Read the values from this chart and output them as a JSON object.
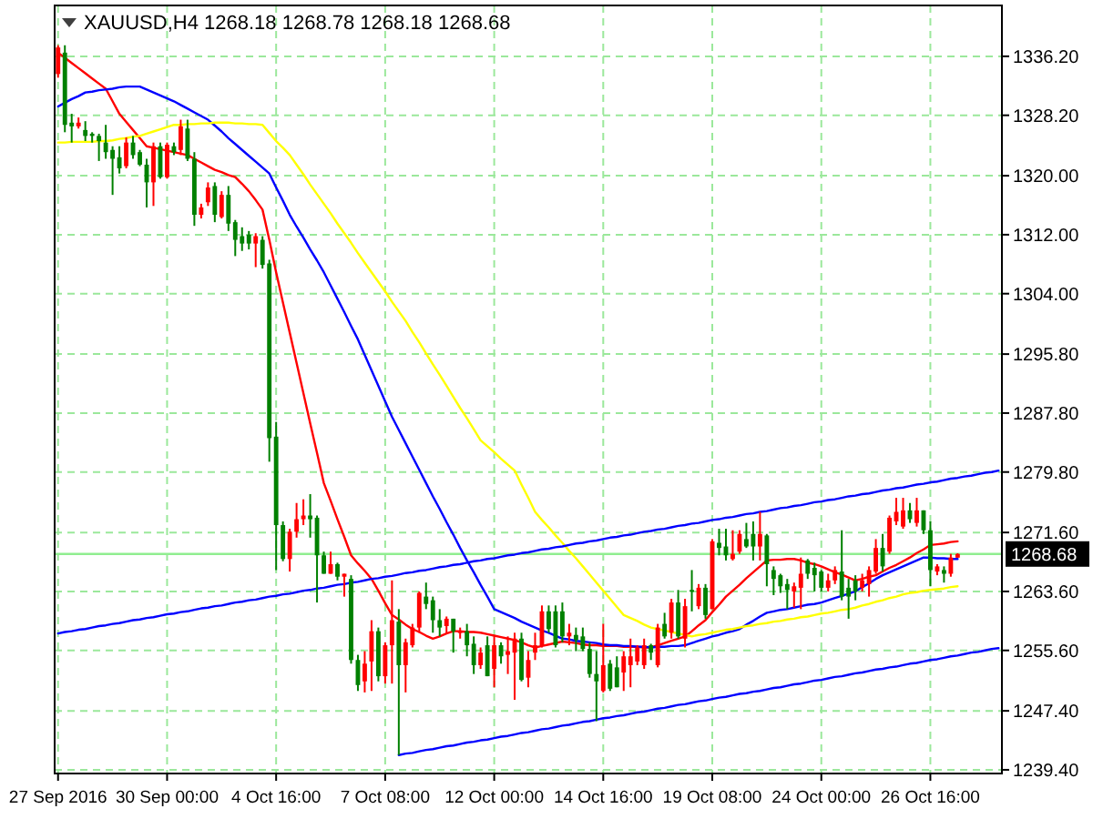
{
  "chart_data": {
    "type": "candlestick",
    "title": "XAUUSD,H4  1268.18 1268.78 1268.18 1268.68",
    "ylim": [
      1238.9,
      1343.1
    ],
    "yticks": [
      {
        "value": 1336.2,
        "label": "1336.20"
      },
      {
        "value": 1328.2,
        "label": "1328.20"
      },
      {
        "value": 1320,
        "label": "1320.00"
      },
      {
        "value": 1312,
        "label": "1312.00"
      },
      {
        "value": 1304,
        "label": "1304.00"
      },
      {
        "value": 1295.8,
        "label": "1295.80"
      },
      {
        "value": 1287.8,
        "label": "1287.80"
      },
      {
        "value": 1279.8,
        "label": "1279.80"
      },
      {
        "value": 1271.6,
        "label": "1271.60"
      },
      {
        "value": 1263.6,
        "label": "1263.60"
      },
      {
        "value": 1255.6,
        "label": "1255.60"
      },
      {
        "value": 1247.4,
        "label": "1247.40"
      },
      {
        "value": 1239.4,
        "label": "1239.40"
      }
    ],
    "grid": true,
    "ref_lines": [
      {
        "axis": "y",
        "value": 1268.68,
        "label": "1268.68",
        "color": "#90ee90"
      }
    ],
    "categories": [
      "27 Sep 2016",
      null,
      null,
      null,
      null,
      null,
      null,
      null,
      null,
      null,
      null,
      null,
      null,
      null,
      null,
      null,
      "30 Sep 00:00",
      null,
      null,
      null,
      null,
      null,
      null,
      null,
      null,
      null,
      null,
      null,
      null,
      null,
      null,
      null,
      "4 Oct 16:00",
      null,
      null,
      null,
      null,
      null,
      null,
      null,
      null,
      null,
      null,
      null,
      null,
      null,
      null,
      null,
      "7 Oct 08:00",
      null,
      null,
      null,
      null,
      null,
      null,
      null,
      null,
      null,
      null,
      null,
      null,
      null,
      null,
      null,
      "12 Oct 00:00",
      null,
      null,
      null,
      null,
      null,
      null,
      null,
      null,
      null,
      null,
      null,
      null,
      null,
      null,
      null,
      "14 Oct 16:00",
      null,
      null,
      null,
      null,
      null,
      null,
      null,
      null,
      null,
      null,
      null,
      null,
      null,
      null,
      null,
      "19 Oct 08:00",
      null,
      null,
      null,
      null,
      null,
      null,
      null,
      null,
      null,
      null,
      null,
      null,
      null,
      null,
      null,
      "24 Oct 00:00",
      null,
      null,
      null,
      null,
      null,
      null,
      null,
      null,
      null,
      null,
      null,
      null,
      null,
      null,
      null,
      "26 Oct 16:00",
      null,
      null,
      null,
      null,
      null,
      null,
      null,
      null,
      null,
      null
    ],
    "ohlc": [
      [
        1333.8,
        1337.7,
        1333.3,
        1337.4
      ],
      [
        1336.7,
        1337.7,
        1325.9,
        1326.9
      ],
      [
        1327.2,
        1328.4,
        1324.5,
        1326.7
      ],
      [
        1326.7,
        1327.9,
        1326.4,
        1327.2
      ],
      [
        1326.2,
        1327.4,
        1324.7,
        1325.4
      ],
      [
        1325.7,
        1325.9,
        1324.5,
        1325.4
      ],
      [
        1325.4,
        1325.7,
        1322.0,
        1324.7
      ],
      [
        1324.5,
        1326.9,
        1322.3,
        1323.2
      ],
      [
        1323.5,
        1324.0,
        1317.4,
        1322.3
      ],
      [
        1322.5,
        1324.0,
        1320.3,
        1321.0
      ],
      [
        1321.3,
        1325.2,
        1321.0,
        1324.5
      ],
      [
        1324.5,
        1325.4,
        1322.3,
        1322.8
      ],
      [
        1323.2,
        1323.5,
        1321.3,
        1321.5
      ],
      [
        1321.5,
        1322.3,
        1315.7,
        1319.1
      ],
      [
        1319.1,
        1324.5,
        1315.9,
        1324.0
      ],
      [
        1324.0,
        1324.5,
        1319.6,
        1319.8
      ],
      [
        1319.8,
        1324.5,
        1319.6,
        1324.2
      ],
      [
        1324.0,
        1324.5,
        1322.8,
        1323.2
      ],
      [
        1323.5,
        1327.6,
        1322.8,
        1326.7
      ],
      [
        1326.4,
        1327.6,
        1322.0,
        1322.3
      ],
      [
        1322.3,
        1323.2,
        1313.2,
        1314.7
      ],
      [
        1314.7,
        1316.2,
        1314.2,
        1315.7
      ],
      [
        1316.4,
        1319.1,
        1315.9,
        1318.4
      ],
      [
        1318.6,
        1319.1,
        1313.7,
        1314.7
      ],
      [
        1314.4,
        1317.9,
        1314.2,
        1317.4
      ],
      [
        1317.4,
        1318.6,
        1312.5,
        1313.5
      ],
      [
        1313.7,
        1314.0,
        1309.1,
        1311.3
      ],
      [
        1311.8,
        1313.0,
        1309.8,
        1310.8
      ],
      [
        1312.0,
        1312.5,
        1310.0,
        1310.8
      ],
      [
        1310.8,
        1312.2,
        1307.6,
        1311.8
      ],
      [
        1311.3,
        1311.8,
        1307.4,
        1307.9
      ],
      [
        1308.1,
        1308.6,
        1281.2,
        1284.4
      ],
      [
        1284.6,
        1286.6,
        1266.5,
        1272.6
      ],
      [
        1272.6,
        1273.1,
        1267.7,
        1268.0
      ],
      [
        1268.0,
        1272.1,
        1266.3,
        1271.7
      ],
      [
        1271.7,
        1275.6,
        1270.9,
        1273.4
      ],
      [
        1273.4,
        1276.1,
        1272.6,
        1273.9
      ],
      [
        1273.9,
        1276.8,
        1270.9,
        1273.4
      ],
      [
        1273.6,
        1273.9,
        1262.1,
        1268.5
      ],
      [
        1268.5,
        1269.0,
        1266.0,
        1266.0
      ],
      [
        1266.0,
        1269.0,
        1266.0,
        1267.3
      ],
      [
        1267.3,
        1267.5,
        1265.1,
        1265.6
      ],
      [
        1265.6,
        1266.0,
        1262.9,
        1266.0
      ],
      [
        1265.3,
        1265.8,
        1253.8,
        1254.3
      ],
      [
        1254.3,
        1255.0,
        1250.1,
        1250.9
      ],
      [
        1251.4,
        1255.5,
        1249.9,
        1253.8
      ],
      [
        1254.1,
        1259.7,
        1250.1,
        1258.2
      ],
      [
        1258.2,
        1258.7,
        1251.4,
        1252.1
      ],
      [
        1252.1,
        1256.7,
        1251.1,
        1256.3
      ],
      [
        1256.3,
        1265.1,
        1251.1,
        1259.7
      ],
      [
        1259.5,
        1261.2,
        1241.4,
        1253.6
      ],
      [
        1253.6,
        1257.2,
        1249.9,
        1256.7
      ],
      [
        1256.3,
        1259.2,
        1256.0,
        1258.7
      ],
      [
        1258.7,
        1263.6,
        1258.0,
        1263.4
      ],
      [
        1262.9,
        1264.8,
        1261.2,
        1261.9
      ],
      [
        1262.4,
        1262.9,
        1258.0,
        1259.7
      ],
      [
        1259.7,
        1261.2,
        1257.5,
        1258.7
      ],
      [
        1258.9,
        1260.2,
        1258.0,
        1259.9
      ],
      [
        1259.9,
        1259.9,
        1255.3,
        1258.2
      ],
      [
        1258.0,
        1258.7,
        1257.2,
        1258.2
      ],
      [
        1258.2,
        1259.2,
        1254.8,
        1256.3
      ],
      [
        1256.5,
        1257.5,
        1252.4,
        1253.6
      ],
      [
        1253.6,
        1256.0,
        1253.1,
        1255.3
      ],
      [
        1256.3,
        1257.5,
        1252.1,
        1252.1
      ],
      [
        1253.1,
        1257.5,
        1250.6,
        1256.3
      ],
      [
        1256.3,
        1256.7,
        1253.8,
        1254.8
      ],
      [
        1255.0,
        1257.5,
        1252.4,
        1255.5
      ],
      [
        1255.3,
        1258.0,
        1248.9,
        1257.2
      ],
      [
        1257.2,
        1258.0,
        1251.4,
        1251.6
      ],
      [
        1251.9,
        1255.5,
        1250.6,
        1254.3
      ],
      [
        1255.3,
        1258.0,
        1254.3,
        1256.3
      ],
      [
        1256.3,
        1261.7,
        1256.0,
        1260.9
      ],
      [
        1260.9,
        1261.7,
        1258.0,
        1258.5
      ],
      [
        1260.9,
        1261.7,
        1256.0,
        1256.3
      ],
      [
        1260.9,
        1262.1,
        1256.7,
        1257.5
      ],
      [
        1257.5,
        1259.2,
        1256.3,
        1258.0
      ],
      [
        1257.7,
        1258.7,
        1255.5,
        1257.0
      ],
      [
        1257.5,
        1258.7,
        1255.5,
        1255.8
      ],
      [
        1255.8,
        1256.7,
        1251.9,
        1252.4
      ],
      [
        1252.4,
        1255.5,
        1246.0,
        1251.4
      ],
      [
        1250.1,
        1259.2,
        1249.9,
        1253.6
      ],
      [
        1253.8,
        1254.3,
        1250.1,
        1250.4
      ],
      [
        1253.3,
        1254.8,
        1250.6,
        1250.6
      ],
      [
        1252.6,
        1255.5,
        1250.1,
        1254.8
      ],
      [
        1253.6,
        1257.2,
        1250.6,
        1254.8
      ],
      [
        1254.1,
        1256.3,
        1253.6,
        1256.0
      ],
      [
        1253.6,
        1257.2,
        1253.1,
        1256.3
      ],
      [
        1256.3,
        1256.5,
        1254.3,
        1255.3
      ],
      [
        1253.6,
        1259.2,
        1253.3,
        1258.7
      ],
      [
        1259.2,
        1260.7,
        1257.2,
        1257.5
      ],
      [
        1258.0,
        1262.6,
        1257.2,
        1262.1
      ],
      [
        1262.1,
        1263.8,
        1257.2,
        1257.5
      ],
      [
        1257.2,
        1262.6,
        1256.0,
        1261.6
      ],
      [
        1263.8,
        1266.5,
        1260.9,
        1263.6
      ],
      [
        1261.6,
        1264.6,
        1261.2,
        1264.1
      ],
      [
        1264.1,
        1264.6,
        1259.9,
        1260.4
      ],
      [
        1261.2,
        1270.7,
        1261.2,
        1270.4
      ],
      [
        1270.2,
        1272.1,
        1268.5,
        1269.5
      ],
      [
        1269.7,
        1272.1,
        1267.8,
        1268.5
      ],
      [
        1268.0,
        1271.9,
        1267.8,
        1268.7
      ],
      [
        1269.0,
        1271.9,
        1268.7,
        1271.4
      ],
      [
        1270.7,
        1272.9,
        1269.5,
        1269.7
      ],
      [
        1271.4,
        1273.1,
        1267.8,
        1269.7
      ],
      [
        1269.7,
        1274.4,
        1267.8,
        1271.4
      ],
      [
        1271.2,
        1271.4,
        1264.3,
        1267.3
      ],
      [
        1266.5,
        1267.0,
        1263.1,
        1265.3
      ],
      [
        1265.8,
        1266.0,
        1263.4,
        1264.3
      ],
      [
        1264.6,
        1265.3,
        1261.2,
        1263.8
      ],
      [
        1263.6,
        1264.8,
        1261.4,
        1264.3
      ],
      [
        1264.1,
        1268.2,
        1261.2,
        1266.0
      ],
      [
        1267.8,
        1268.0,
        1265.3,
        1266.0
      ],
      [
        1266.8,
        1267.5,
        1263.6,
        1265.8
      ],
      [
        1266.3,
        1266.5,
        1263.6,
        1264.1
      ],
      [
        1264.1,
        1266.0,
        1263.6,
        1265.1
      ],
      [
        1265.1,
        1267.0,
        1264.6,
        1266.5
      ],
      [
        1266.3,
        1271.9,
        1262.4,
        1262.9
      ],
      [
        1264.1,
        1265.3,
        1259.9,
        1262.9
      ],
      [
        1265.1,
        1265.8,
        1262.4,
        1263.6
      ],
      [
        1264.1,
        1266.0,
        1263.6,
        1265.1
      ],
      [
        1264.6,
        1267.0,
        1262.9,
        1266.5
      ],
      [
        1266.3,
        1270.7,
        1266.0,
        1269.5
      ],
      [
        1269.5,
        1271.4,
        1266.3,
        1267.0
      ],
      [
        1269.0,
        1273.9,
        1268.7,
        1273.6
      ],
      [
        1273.1,
        1276.3,
        1272.6,
        1274.4
      ],
      [
        1272.4,
        1276.3,
        1272.1,
        1274.6
      ],
      [
        1274.6,
        1275.6,
        1272.9,
        1273.4
      ],
      [
        1272.9,
        1276.3,
        1272.4,
        1274.6
      ],
      [
        1274.6,
        1274.6,
        1271.4,
        1271.9
      ],
      [
        1271.9,
        1273.1,
        1264.3,
        1266.5
      ],
      [
        1266.3,
        1267.3,
        1265.8,
        1267.0
      ],
      [
        1266.5,
        1267.0,
        1264.8,
        1266.0
      ],
      [
        1266.0,
        1268.7,
        1265.6,
        1268.2
      ],
      [
        1268.18,
        1268.78,
        1268.18,
        1268.68
      ],
      null,
      null,
      null,
      null,
      null,
      null
    ],
    "colors": [
      "#ff0000",
      "#008000",
      "#008000",
      "#ff0000",
      "#008000",
      "#008000",
      "#008000",
      "#008000",
      "#008000",
      "#008000",
      "#ff0000",
      "#008000",
      "#008000",
      "#008000",
      "#ff0000",
      "#008000",
      "#ff0000",
      "#008000",
      "#ff0000",
      "#008000",
      "#008000",
      "#ff0000",
      "#ff0000",
      "#008000",
      "#ff0000",
      "#008000",
      "#008000",
      "#008000",
      "#008000",
      "#ff0000",
      "#008000",
      "#008000",
      "#008000",
      "#008000",
      "#ff0000",
      "#ff0000",
      "#ff0000",
      "#008000",
      "#008000",
      "#008000",
      "#ff0000",
      "#008000",
      "#ff0000",
      "#008000",
      "#008000",
      "#ff0000",
      "#ff0000",
      "#008000",
      "#ff0000",
      "#ff0000",
      "#008000",
      "#ff0000",
      "#ff0000",
      "#ff0000",
      "#008000",
      "#008000",
      "#008000",
      "#ff0000",
      "#008000",
      "#ff0000",
      "#008000",
      "#008000",
      "#ff0000",
      "#008000",
      "#ff0000",
      "#008000",
      "#ff0000",
      "#ff0000",
      "#008000",
      "#ff0000",
      "#ff0000",
      "#ff0000",
      "#008000",
      "#008000",
      "#008000",
      "#ff0000",
      "#008000",
      "#008000",
      "#008000",
      "#008000",
      "#ff0000",
      "#008000",
      "#008000",
      "#ff0000",
      "#ff0000",
      "#ff0000",
      "#ff0000",
      "#008000",
      "#ff0000",
      "#008000",
      "#ff0000",
      "#008000",
      "#ff0000",
      "#008000",
      "#ff0000",
      "#008000",
      "#ff0000",
      "#008000",
      "#008000",
      "#ff0000",
      "#ff0000",
      "#008000",
      "#008000",
      "#ff0000",
      "#008000",
      "#008000",
      "#008000",
      "#008000",
      "#ff0000",
      "#ff0000",
      "#008000",
      "#008000",
      "#008000",
      "#ff0000",
      "#ff0000",
      "#008000",
      "#008000",
      "#008000",
      "#ff0000",
      "#ff0000",
      "#ff0000",
      "#008000",
      "#ff0000",
      "#ff0000",
      "#ff0000",
      "#008000",
      "#ff0000",
      "#008000",
      "#008000",
      "#ff0000",
      "#008000",
      "#ff0000",
      "#ff0000",
      null,
      null,
      null,
      null,
      null,
      null
    ],
    "series": [
      {
        "type": "line",
        "color": "#ff0000",
        "values": [
          1336.7,
          1336.0,
          1335.3,
          1334.6,
          1333.9,
          1333.2,
          1332.5,
          1331.8,
          1330.1,
          1328.4,
          1327.3,
          1326.2,
          1325.1,
          1324.0,
          1323.8,
          1323.6,
          1323.4,
          1323.2,
          1323.0,
          1322.8,
          1322.3,
          1321.8,
          1321.3,
          1320.8,
          1320.5,
          1320.1,
          1319.8,
          1318.9,
          1317.9,
          1316.7,
          1315.4,
          1311.3,
          1306.9,
          1302.8,
          1298.7,
          1294.6,
          1290.5,
          1286.4,
          1282.4,
          1278.3,
          1275.9,
          1273.4,
          1271.0,
          1268.5,
          1267.4,
          1266.4,
          1265.3,
          1263.7,
          1262.0,
          1260.4,
          1259.8,
          1259.1,
          1258.5,
          1258.1,
          1257.6,
          1257.2,
          1257.5,
          1257.9,
          1258.2,
          1258.2,
          1258.1,
          1258.1,
          1258.0,
          1257.8,
          1257.6,
          1257.4,
          1257.2,
          1257.0,
          1256.7,
          1256.3,
          1256.0,
          1256.2,
          1256.4,
          1256.6,
          1256.8,
          1256.7,
          1256.6,
          1256.4,
          1256.3,
          1256.3,
          1256.2,
          1256.2,
          1256.2,
          1256.1,
          1256.1,
          1256.1,
          1256.0,
          1256.0,
          1256.3,
          1256.6,
          1256.9,
          1257.2,
          1257.5,
          1258.2,
          1259.0,
          1259.7,
          1260.8,
          1261.8,
          1262.9,
          1263.7,
          1264.5,
          1265.4,
          1266.2,
          1267.0,
          1267.8,
          1267.9,
          1267.9,
          1268.0,
          1268.0,
          1267.8,
          1267.5,
          1267.3,
          1267.0,
          1266.6,
          1266.2,
          1265.9,
          1265.5,
          1265.1,
          1265.3,
          1265.6,
          1265.8,
          1266.3,
          1266.8,
          1267.2,
          1267.7,
          1268.2,
          1268.8,
          1269.3,
          1269.9,
          1270.0,
          1270.1,
          1270.3,
          1270.4,
          null,
          null,
          null,
          null,
          null,
          null
        ]
      },
      {
        "type": "line",
        "color": "#0000ff",
        "values": [
          1329.4,
          1329.9,
          1330.4,
          1330.8,
          1331.3,
          1331.4,
          1331.6,
          1331.7,
          1331.8,
          1332.0,
          1332.1,
          1332.1,
          1332.1,
          1331.7,
          1331.3,
          1330.9,
          1330.5,
          1330.1,
          1329.6,
          1329.1,
          1328.6,
          1328.1,
          1327.6,
          1326.8,
          1326.0,
          1325.1,
          1324.3,
          1323.5,
          1322.7,
          1321.9,
          1321.1,
          1320.3,
          1318.4,
          1316.6,
          1314.7,
          1313.1,
          1311.6,
          1310.0,
          1308.5,
          1306.9,
          1305.1,
          1303.3,
          1301.5,
          1299.6,
          1297.8,
          1295.7,
          1293.6,
          1291.5,
          1289.4,
          1287.3,
          1285.5,
          1283.7,
          1281.9,
          1280.1,
          1278.3,
          1276.5,
          1274.8,
          1273.0,
          1271.3,
          1269.5,
          1267.8,
          1266.2,
          1264.5,
          1262.9,
          1261.2,
          1260.8,
          1260.4,
          1260.0,
          1259.5,
          1259.1,
          1258.7,
          1258.3,
          1258.0,
          1257.6,
          1257.2,
          1257.1,
          1256.9,
          1256.8,
          1256.7,
          1256.6,
          1256.4,
          1256.3,
          1256.3,
          1256.2,
          1256.2,
          1256.1,
          1256.1,
          1256.0,
          1256.1,
          1256.1,
          1256.2,
          1256.2,
          1256.3,
          1256.6,
          1256.9,
          1257.2,
          1257.5,
          1257.7,
          1258.0,
          1258.2,
          1258.5,
          1259.1,
          1259.6,
          1260.2,
          1260.7,
          1260.9,
          1261.1,
          1261.2,
          1261.4,
          1261.6,
          1261.8,
          1261.9,
          1262.1,
          1262.4,
          1262.7,
          1263.0,
          1263.3,
          1263.6,
          1264.2,
          1264.7,
          1265.3,
          1265.8,
          1266.2,
          1266.6,
          1267.0,
          1267.4,
          1267.8,
          1268.2,
          1268.2,
          1268.1,
          1268.1,
          1268.0,
          1268.0,
          null,
          null,
          null,
          null,
          null,
          null
        ]
      },
      {
        "type": "line",
        "color": "#ffff00",
        "values": [
          1324.5,
          1324.5,
          1324.6,
          1324.6,
          1324.6,
          1324.6,
          1324.7,
          1324.7,
          1324.8,
          1325.0,
          1325.1,
          1325.3,
          1325.4,
          1325.7,
          1326.0,
          1326.3,
          1326.6,
          1326.9,
          1326.9,
          1327.0,
          1327.0,
          1327.1,
          1327.1,
          1327.2,
          1327.2,
          1327.2,
          1327.1,
          1327.1,
          1327.0,
          1327.0,
          1326.9,
          1325.8,
          1324.7,
          1323.8,
          1322.8,
          1321.5,
          1320.2,
          1318.8,
          1317.5,
          1316.2,
          1314.9,
          1313.5,
          1312.2,
          1310.9,
          1309.5,
          1308.2,
          1306.9,
          1305.6,
          1304.3,
          1302.9,
          1301.6,
          1300.3,
          1298.8,
          1297.4,
          1295.9,
          1294.4,
          1293.0,
          1291.5,
          1290.0,
          1288.5,
          1287.1,
          1285.6,
          1284.1,
          1283.3,
          1282.5,
          1281.6,
          1280.8,
          1280.0,
          1278.1,
          1276.3,
          1274.4,
          1273.3,
          1272.3,
          1271.2,
          1270.2,
          1269.1,
          1268.1,
          1267.0,
          1265.9,
          1264.8,
          1263.7,
          1262.6,
          1261.5,
          1260.4,
          1260.0,
          1259.6,
          1259.1,
          1258.7,
          1258.5,
          1258.3,
          1258.1,
          1257.9,
          1257.7,
          1257.5,
          1257.7,
          1257.8,
          1258.0,
          1258.2,
          1258.4,
          1258.5,
          1258.7,
          1258.9,
          1259.0,
          1259.2,
          1259.3,
          1259.5,
          1259.6,
          1259.8,
          1259.9,
          1260.1,
          1260.2,
          1260.4,
          1260.6,
          1260.7,
          1260.9,
          1261.1,
          1261.2,
          1261.4,
          1261.7,
          1261.9,
          1262.2,
          1262.4,
          1262.7,
          1262.9,
          1263.2,
          1263.4,
          1263.5,
          1263.7,
          1263.8,
          1263.9,
          1264.0,
          1264.2,
          1264.3,
          null,
          null,
          null,
          null,
          null,
          null
        ]
      },
      {
        "type": "line",
        "color": "#0000ff",
        "values": [
          1257.9,
          1258.1,
          1258.2,
          1258.4,
          1258.5,
          1258.7,
          1258.9,
          1259.0,
          1259.2,
          1259.3,
          1259.5,
          1259.7,
          1259.8,
          1260.0,
          1260.1,
          1260.3,
          1260.5,
          1260.6,
          1260.8,
          1260.9,
          1261.1,
          1261.3,
          1261.4,
          1261.6,
          1261.7,
          1261.9,
          1262.1,
          1262.2,
          1262.4,
          1262.5,
          1262.7,
          1262.9,
          1263.0,
          1263.2,
          1263.3,
          1263.5,
          1263.7,
          1263.8,
          1264.0,
          1264.1,
          1264.3,
          1264.5,
          1264.6,
          1264.8,
          1264.9,
          1265.1,
          1265.3,
          1265.4,
          1265.6,
          1265.7,
          1265.9,
          1266.1,
          1266.2,
          1266.4,
          1266.5,
          1266.7,
          1266.9,
          1267.0,
          1267.2,
          1267.3,
          1267.5,
          1267.7,
          1267.8,
          1268.0,
          1268.1,
          1268.3,
          1268.5,
          1268.6,
          1268.8,
          1268.9,
          1269.1,
          1269.3,
          1269.4,
          1269.6,
          1269.7,
          1269.9,
          1270.1,
          1270.2,
          1270.4,
          1270.5,
          1270.7,
          1270.9,
          1271.0,
          1271.2,
          1271.3,
          1271.5,
          1271.7,
          1271.8,
          1272.0,
          1272.1,
          1272.3,
          1272.5,
          1272.6,
          1272.8,
          1272.9,
          1273.1,
          1273.3,
          1273.4,
          1273.6,
          1273.7,
          1273.9,
          1274.1,
          1274.2,
          1274.4,
          1274.5,
          1274.7,
          1274.9,
          1275.0,
          1275.2,
          1275.3,
          1275.5,
          1275.7,
          1275.8,
          1276.0,
          1276.1,
          1276.3,
          1276.5,
          1276.6,
          1276.8,
          1276.9,
          1277.1,
          1277.3,
          1277.4,
          1277.6,
          1277.7,
          1277.9,
          1278.1,
          1278.2,
          1278.4,
          1278.5,
          1278.7,
          1278.9,
          1279.0,
          1279.2,
          1279.3,
          1279.5,
          1279.7,
          1279.8,
          1280.0
        ]
      },
      {
        "type": "line",
        "color": "#0000ff",
        "values": [
          null,
          null,
          null,
          null,
          null,
          null,
          null,
          null,
          null,
          null,
          null,
          null,
          null,
          null,
          null,
          null,
          null,
          null,
          null,
          null,
          null,
          null,
          null,
          null,
          null,
          null,
          null,
          null,
          null,
          null,
          null,
          null,
          null,
          null,
          null,
          null,
          null,
          null,
          null,
          null,
          null,
          null,
          null,
          null,
          null,
          null,
          null,
          null,
          null,
          null,
          1241.4,
          1241.6,
          1241.7,
          1241.9,
          1242.1,
          1242.2,
          1242.4,
          1242.6,
          1242.7,
          1242.9,
          1243.1,
          1243.2,
          1243.4,
          1243.5,
          1243.7,
          1243.9,
          1244.0,
          1244.2,
          1244.4,
          1244.5,
          1244.7,
          1244.9,
          1245.0,
          1245.2,
          1245.4,
          1245.5,
          1245.7,
          1245.9,
          1246.0,
          1246.2,
          1246.4,
          1246.5,
          1246.7,
          1246.8,
          1247.0,
          1247.2,
          1247.3,
          1247.5,
          1247.7,
          1247.8,
          1248.0,
          1248.2,
          1248.3,
          1248.5,
          1248.7,
          1248.8,
          1249.0,
          1249.2,
          1249.3,
          1249.5,
          1249.7,
          1249.8,
          1250.0,
          1250.1,
          1250.3,
          1250.5,
          1250.6,
          1250.8,
          1251.0,
          1251.1,
          1251.3,
          1251.5,
          1251.6,
          1251.8,
          1252.0,
          1252.1,
          1252.3,
          1252.5,
          1252.6,
          1252.8,
          1253.0,
          1253.1,
          1253.3,
          1253.4,
          1253.6,
          1253.8,
          1253.9,
          1254.1,
          1254.3,
          1254.4,
          1254.6,
          1254.8,
          1254.9,
          1255.1,
          1255.3,
          1255.4,
          1255.6,
          1255.8,
          1255.9
        ]
      }
    ]
  }
}
